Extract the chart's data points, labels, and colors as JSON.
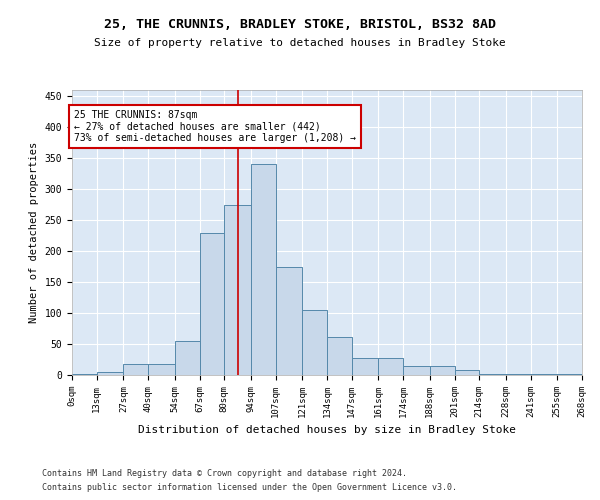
{
  "title1": "25, THE CRUNNIS, BRADLEY STOKE, BRISTOL, BS32 8AD",
  "title2": "Size of property relative to detached houses in Bradley Stoke",
  "xlabel": "Distribution of detached houses by size in Bradley Stoke",
  "ylabel": "Number of detached properties",
  "footnote1": "Contains HM Land Registry data © Crown copyright and database right 2024.",
  "footnote2": "Contains public sector information licensed under the Open Government Licence v3.0.",
  "annotation_line1": "25 THE CRUNNIS: 87sqm",
  "annotation_line2": "← 27% of detached houses are smaller (442)",
  "annotation_line3": "73% of semi-detached houses are larger (1,208) →",
  "bar_edges": [
    0,
    13,
    27,
    40,
    54,
    67,
    80,
    94,
    107,
    121,
    134,
    147,
    161,
    174,
    188,
    201,
    214,
    228,
    241,
    255,
    268
  ],
  "bar_heights": [
    1,
    5,
    18,
    18,
    55,
    230,
    275,
    340,
    175,
    105,
    62,
    28,
    28,
    15,
    15,
    8,
    2,
    2,
    2,
    1
  ],
  "bar_color": "#c8d8ea",
  "bar_edge_color": "#5588aa",
  "vline_color": "#cc0000",
  "vline_x": 87,
  "ylim": [
    0,
    460
  ],
  "yticks": [
    0,
    50,
    100,
    150,
    200,
    250,
    300,
    350,
    400,
    450
  ],
  "plot_bg": "#dce8f5",
  "grid_color": "#ffffff",
  "annotation_box_edge": "#cc0000"
}
